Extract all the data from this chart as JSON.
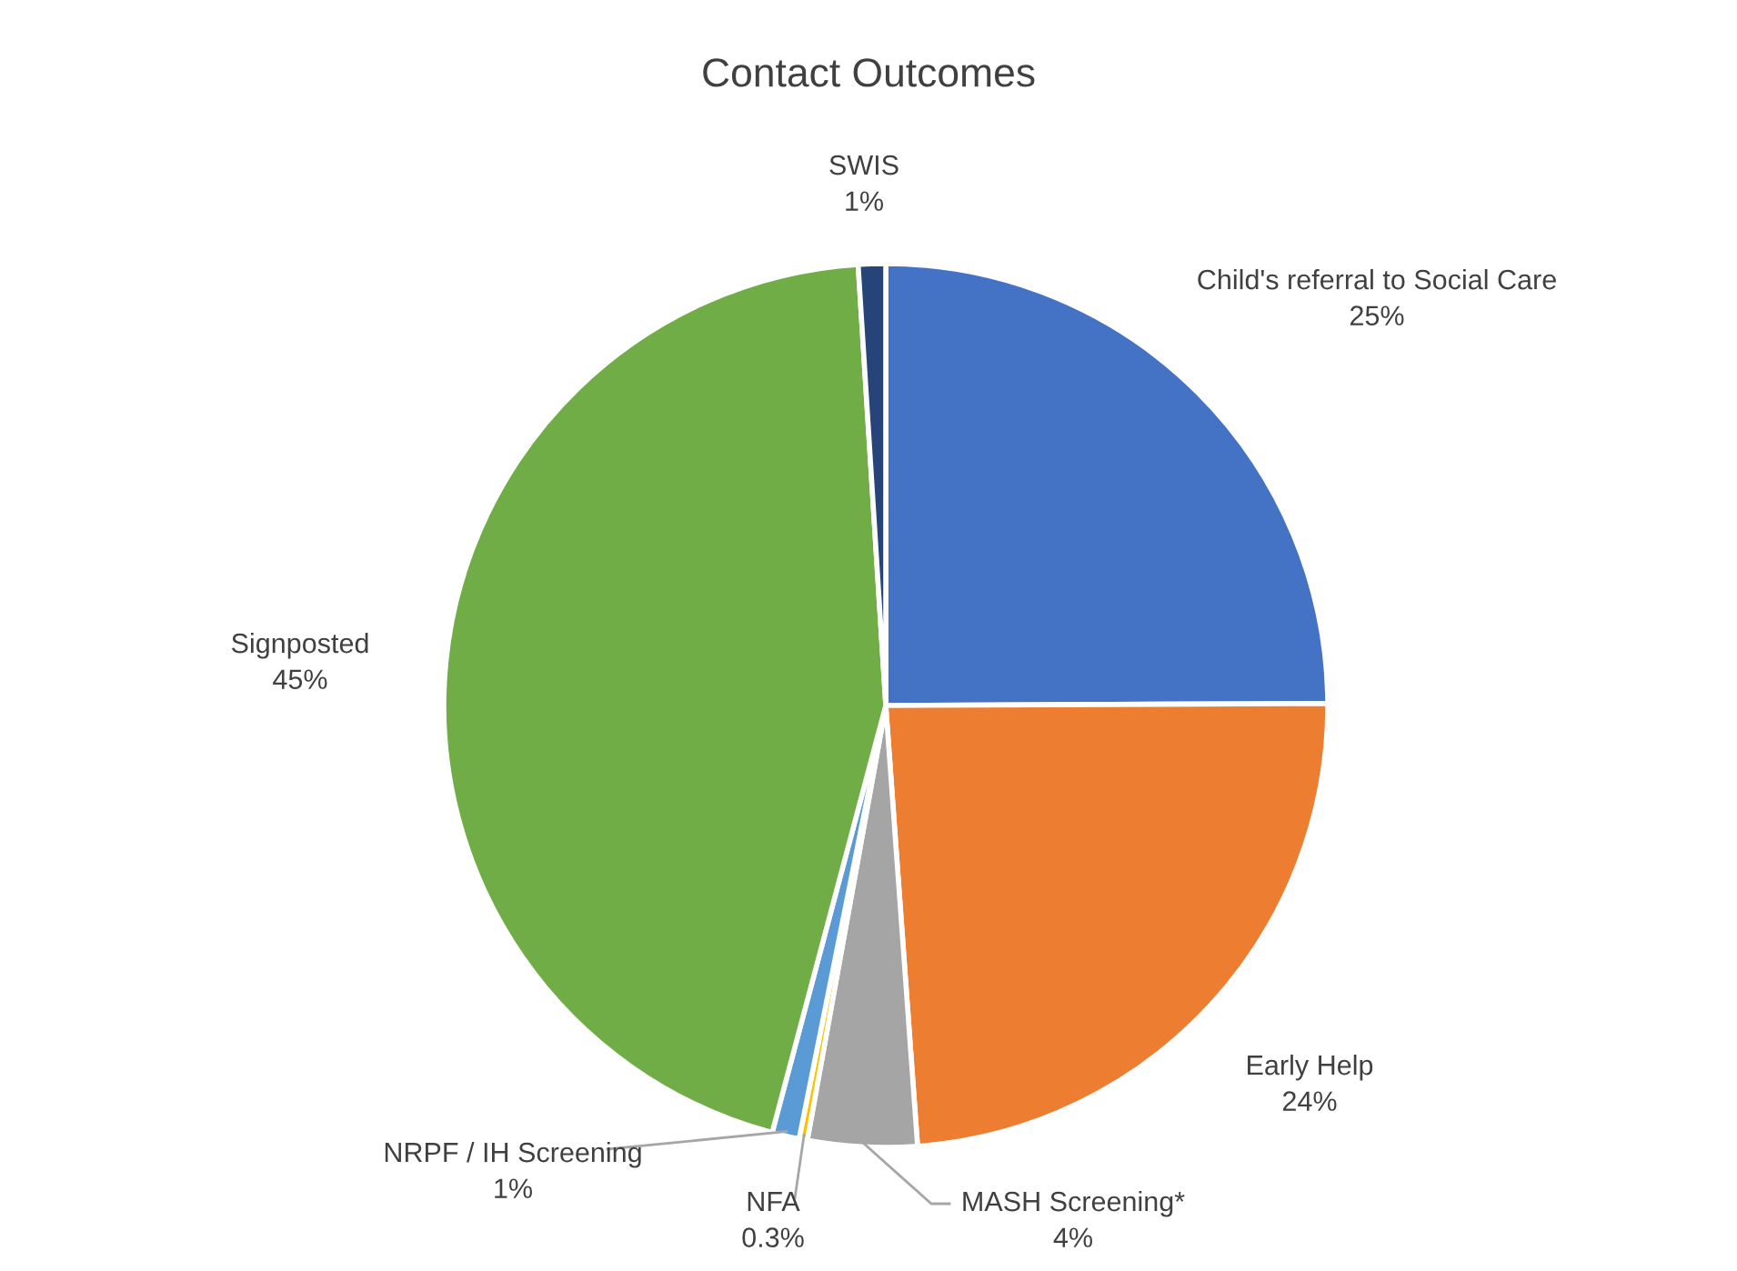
{
  "chart_data": {
    "type": "pie",
    "title": "Contact Outcomes",
    "categories": [
      "Child's referral to Social Care",
      "Early Help",
      "MASH Screening*",
      "NFA",
      "NRPF / IH Screening",
      "Signposted",
      "SWIS"
    ],
    "values": [
      25,
      24,
      4,
      0.3,
      1,
      45,
      1
    ],
    "colors": [
      "#4472c4",
      "#ed7d31",
      "#a5a5a5",
      "#ffc000",
      "#5b9bd5",
      "#70ad47",
      "#264478"
    ],
    "value_labels": [
      "25%",
      "24%",
      "4%",
      "0.3%",
      "1%",
      "45%",
      "1%"
    ],
    "legend": false
  }
}
